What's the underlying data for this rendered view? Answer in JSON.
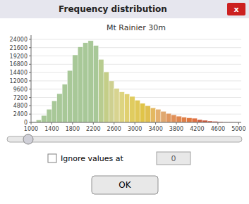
{
  "chart_data": {
    "type": "histogram",
    "title": "Frequency distribution",
    "subtitle": "Mt Rainier 30m",
    "annotations": [
      "x",
      "Ignore values at",
      "0",
      "OK"
    ],
    "bins": [
      1000,
      1100,
      1200,
      1300,
      1400,
      1500,
      1600,
      1700,
      1800,
      1900,
      2000,
      2100,
      2200,
      2300,
      2400,
      2500,
      2600,
      2700,
      2800,
      2900,
      3000,
      3100,
      3200,
      3300,
      3400,
      3500,
      3600,
      3700,
      3800,
      3900,
      4000,
      4100,
      4200,
      4300,
      4400,
      4500,
      4600,
      4700,
      4800,
      4900,
      5000
    ],
    "values": [
      200,
      700,
      2000,
      3800,
      6200,
      8300,
      11000,
      15000,
      19500,
      21800,
      23000,
      23600,
      22200,
      18200,
      14600,
      12000,
      9800,
      8800,
      8200,
      7500,
      6400,
      5500,
      4800,
      4200,
      3800,
      3200,
      2600,
      2200,
      1800,
      1500,
      1300,
      1200,
      800,
      600,
      400,
      300,
      200,
      100,
      80,
      30
    ],
    "colors": [
      "#a8c898",
      "#a8c898",
      "#a8c898",
      "#a8c898",
      "#a8c898",
      "#a8c898",
      "#a8c898",
      "#a8c898",
      "#a8c898",
      "#a8c898",
      "#a8c898",
      "#a8c898",
      "#a8c898",
      "#b8cc90",
      "#c4ce88",
      "#ced090",
      "#d8d490",
      "#ddd480",
      "#e0d070",
      "#e0cc60",
      "#e0c858",
      "#e0c448",
      "#e0c050",
      "#e4b860",
      "#e4b070",
      "#e0a870",
      "#e09860",
      "#e09058",
      "#e08850",
      "#e08048",
      "#e07840",
      "#e07040",
      "#cc5c3c",
      "#c85438",
      "#c85038",
      "#c84838",
      "#c84838",
      "#c84838",
      "#c04030",
      "#c04030"
    ],
    "xlim": [
      1000,
      5050
    ],
    "xticks": [
      1000,
      1400,
      1800,
      2200,
      2600,
      3000,
      3400,
      3800,
      4200,
      4600,
      5000
    ],
    "ylim": [
      0,
      25200
    ],
    "yticks": [
      0,
      2400,
      4800,
      7200,
      9600,
      12000,
      14400,
      16800,
      19200,
      21600,
      24000
    ]
  }
}
